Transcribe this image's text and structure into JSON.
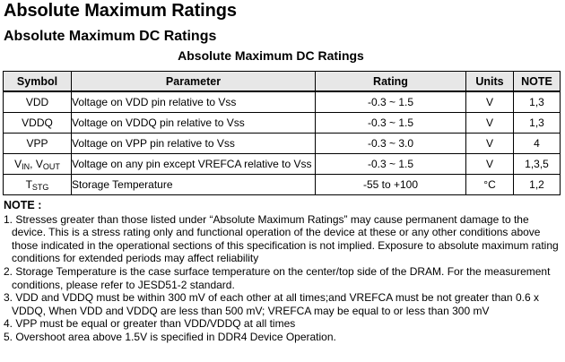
{
  "headings": {
    "main": "Absolute Maximum Ratings",
    "sub": "Absolute Maximum DC Ratings",
    "table_caption": "Absolute Maximum DC Ratings"
  },
  "table": {
    "headers": {
      "symbol": "Symbol",
      "parameter": "Parameter",
      "rating": "Rating",
      "units": "Units",
      "note": "NOTE"
    },
    "rows": [
      {
        "symbol": "VDD",
        "symbol_sub": "",
        "symbol2": "",
        "symbol2_sub": "",
        "parameter": "Voltage on VDD pin relative to Vss",
        "rating": "-0.3  ~ 1.5",
        "units": "V",
        "note": "1,3"
      },
      {
        "symbol": "VDDQ",
        "symbol_sub": "",
        "symbol2": "",
        "symbol2_sub": "",
        "parameter": "Voltage on VDDQ pin relative to Vss",
        "rating": "-0.3  ~ 1.5",
        "units": "V",
        "note": "1,3"
      },
      {
        "symbol": "VPP",
        "symbol_sub": "",
        "symbol2": "",
        "symbol2_sub": "",
        "parameter": "Voltage on VPP pin relative to Vss",
        "rating": "-0.3  ~ 3.0",
        "units": "V",
        "note": "4"
      },
      {
        "symbol": "V",
        "symbol_sub": "IN",
        "symbol2": ", V",
        "symbol2_sub": "OUT",
        "parameter": "Voltage on any pin except VREFCA relative to Vss",
        "rating": "-0.3  ~ 1.5",
        "units": "V",
        "note": "1,3,5"
      },
      {
        "symbol": "T",
        "symbol_sub": "STG",
        "symbol2": "",
        "symbol2_sub": "",
        "parameter": "Storage Temperature",
        "rating": "-55 to +100",
        "units": "°C",
        "note": "1,2"
      }
    ]
  },
  "notes": {
    "title": "NOTE :",
    "items": [
      "1. Stresses greater than those listed under “Absolute Maximum Ratings” may cause permanent damage to the device. This is a stress rating only and functional operation of the device at these or any other conditions above those indicated in the operational sections of this specification is not implied. Exposure to absolute maximum rating conditions for extended periods may affect reliability",
      "2. Storage Temperature is the case surface temperature on the center/top side of the DRAM. For the measurement conditions, please refer to JESD51-2 standard.",
      "3. VDD and VDDQ must be within 300 mV of each other at all times;and VREFCA must be not greater than 0.6 x VDDQ, When VDD and VDDQ are less than 500 mV; VREFCA may be equal to or less than 300 mV",
      "4. VPP must be equal or greater than VDD/VDDQ at all times",
      "5. Overshoot area above 1.5V is specified in DDR4 Device Operation."
    ]
  }
}
